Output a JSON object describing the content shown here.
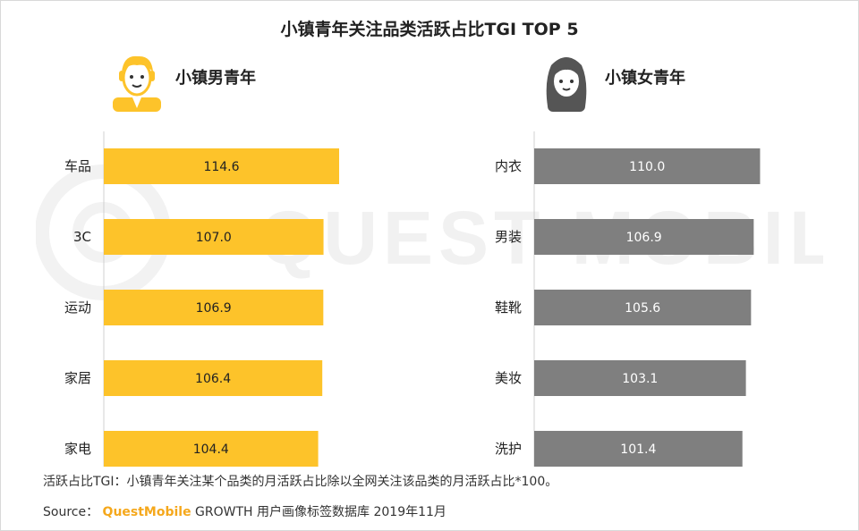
{
  "title": "小镇青年关注品类活跃占比TGI TOP 5",
  "left_panel": {
    "label": "小镇男青年",
    "avatar_icon": "young-man-icon"
  },
  "right_panel": {
    "label": "小镇女青年",
    "avatar_icon": "young-woman-icon"
  },
  "footnote": "活跃占比TGI：小镇青年关注某个品类的月活跃占比除以全网关注该品类的月活跃占比*100。",
  "source": {
    "prefix": "Source：",
    "brand": "QuestMobile",
    "rest": " GROWTH 用户画像标签数据库 2019年11月"
  },
  "watermark": "QUEST MOBILE",
  "colors": {
    "male_bar": "#FDC32A",
    "female_bar": "#7F7F7F",
    "brand": "#F5A81C"
  },
  "chart_data": [
    {
      "type": "bar",
      "orientation": "horizontal",
      "series_name": "小镇男青年",
      "categories": [
        "车品",
        "3C",
        "运动",
        "家居",
        "家电"
      ],
      "values": [
        114.6,
        107.0,
        106.9,
        106.4,
        104.4
      ],
      "value_labels": [
        "114.6",
        "107.0",
        "106.9",
        "106.4",
        "104.4"
      ],
      "color": "#FDC32A"
    },
    {
      "type": "bar",
      "orientation": "horizontal",
      "series_name": "小镇女青年",
      "categories": [
        "内衣",
        "男装",
        "鞋靴",
        "美妆",
        "洗护"
      ],
      "values": [
        110.0,
        106.9,
        105.6,
        103.1,
        101.4
      ],
      "value_labels": [
        "110.0",
        "106.9",
        "105.6",
        "103.1",
        "101.4"
      ],
      "color": "#7F7F7F"
    }
  ]
}
